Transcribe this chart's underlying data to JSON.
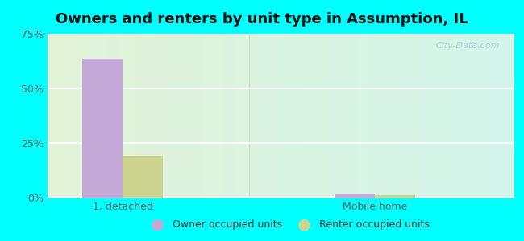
{
  "title": "Owners and renters by unit type in Assumption, IL",
  "categories": [
    "1, detached",
    "Mobile home"
  ],
  "owner_values": [
    63.5,
    1.8
  ],
  "renter_values": [
    19.0,
    1.2
  ],
  "owner_color": "#c4a8d8",
  "renter_color": "#cdd490",
  "ylim": [
    0,
    75
  ],
  "yticks": [
    0,
    25,
    50,
    75
  ],
  "ytick_labels": [
    "0%",
    "25%",
    "50%",
    "75%"
  ],
  "bar_width": 0.32,
  "outer_bg": "#00ffff",
  "grid_color": "#e8f0e8",
  "title_fontsize": 13,
  "tick_fontsize": 9,
  "legend_labels": [
    "Owner occupied units",
    "Renter occupied units"
  ],
  "watermark": "City-Data.com",
  "positions": [
    0.5,
    2.5
  ],
  "xlim": [
    -0.1,
    3.6
  ]
}
